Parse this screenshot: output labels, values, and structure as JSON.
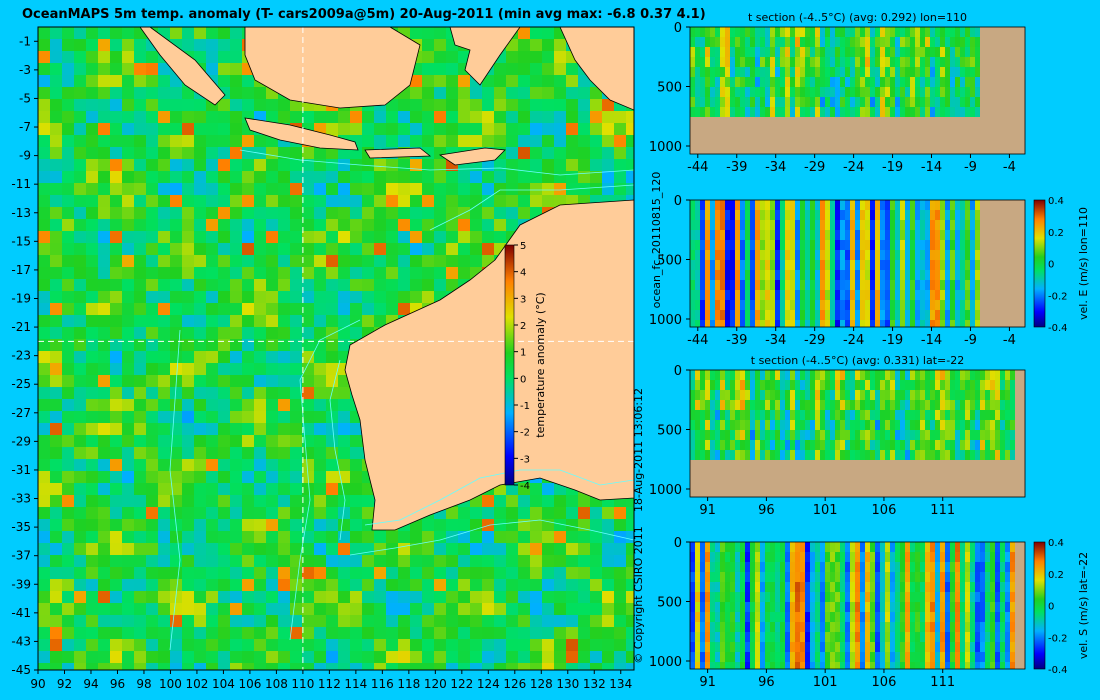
{
  "title": "OceanMAPS 5m temp. anomaly (T- cars2009a@5m) 20-Aug-2011 (min avg max: -6.8 0.37 4.1)",
  "colors": {
    "background": "#00ccff",
    "land": "#ffcc99",
    "section_land": "#c8a882",
    "coast": "#000000",
    "isobath": "#66ffff",
    "crosshair": "#ffffff"
  },
  "side_text": {
    "model_run": "ocean_fc_20110815_120",
    "issued": "18-Aug-2011 13:06:12",
    "copyright": "© Copyright CSIRO 2011"
  },
  "chart_data": [
    {
      "type": "heatmap",
      "name": "map",
      "title": "OceanMAPS 5m temp. anomaly (T- cars2009a@5m) 20-Aug-2011 (min avg max: -6.8 0.37 4.1)",
      "xlim": [
        90,
        135
      ],
      "ylim": [
        -45,
        0
      ],
      "x_ticks": [
        "90",
        "92",
        "94",
        "96",
        "98",
        "100",
        "102",
        "104",
        "106",
        "108",
        "110",
        "112",
        "114",
        "116",
        "118",
        "120",
        "122",
        "124",
        "126",
        "128",
        "130",
        "132",
        "134"
      ],
      "y_ticks": [
        "-1",
        "-3",
        "-5",
        "-7",
        "-9",
        "-11",
        "-13",
        "-15",
        "-17",
        "-19",
        "-21",
        "-23",
        "-25",
        "-27",
        "-29",
        "-31",
        "-33",
        "-35",
        "-37",
        "-39",
        "-41",
        "-43",
        "-45"
      ],
      "crosshair": {
        "lon": 110,
        "lat": -22
      },
      "colorbar": {
        "label": "temperature anomaly (°C)",
        "ticks": [
          "5",
          "4",
          "3",
          "2",
          "1",
          "0",
          "-1",
          "-2",
          "-3",
          "-4"
        ],
        "range": [
          -4,
          5
        ]
      },
      "stats": {
        "min": -6.8,
        "avg": 0.37,
        "max": 4.1
      }
    },
    {
      "type": "heatmap",
      "name": "t_section_lon",
      "title": "t section (-4..5°C) (avg: 0.292) lon=110",
      "x_ticks": [
        "-44",
        "-39",
        "-34",
        "-29",
        "-24",
        "-19",
        "-14",
        "-9",
        "-4"
      ],
      "y_ticks": [
        "0",
        "500",
        "1000"
      ],
      "ylim": [
        1000,
        0
      ],
      "avg": 0.292
    },
    {
      "type": "heatmap",
      "name": "velE_section_lon",
      "title": "",
      "ylabel": "vel. E (m/s) lon=110",
      "x_ticks": [
        "-44",
        "-39",
        "-34",
        "-29",
        "-24",
        "-19",
        "-14",
        "-9",
        "-4"
      ],
      "y_ticks": [
        "0",
        "500",
        "1000"
      ],
      "colorbar": {
        "ticks": [
          "0.4",
          "0.2",
          "0",
          "-0.2",
          "-0.4"
        ],
        "range": [
          -0.4,
          0.4
        ]
      }
    },
    {
      "type": "heatmap",
      "name": "t_section_lat",
      "title": "t section (-4..5°C) (avg: 0.331) lat=-22",
      "x_ticks": [
        "91",
        "96",
        "101",
        "106",
        "111"
      ],
      "y_ticks": [
        "0",
        "500",
        "1000"
      ],
      "avg": 0.331
    },
    {
      "type": "heatmap",
      "name": "velS_section_lat",
      "title": "",
      "ylabel": "vel. S (m/s) lat=-22",
      "x_ticks": [
        "91",
        "96",
        "101",
        "106",
        "111"
      ],
      "y_ticks": [
        "0",
        "500",
        "1000"
      ],
      "colorbar": {
        "ticks": [
          "0.4",
          "0.2",
          "0",
          "-0.2",
          "-0.4"
        ],
        "range": [
          -0.4,
          0.4
        ]
      }
    }
  ]
}
